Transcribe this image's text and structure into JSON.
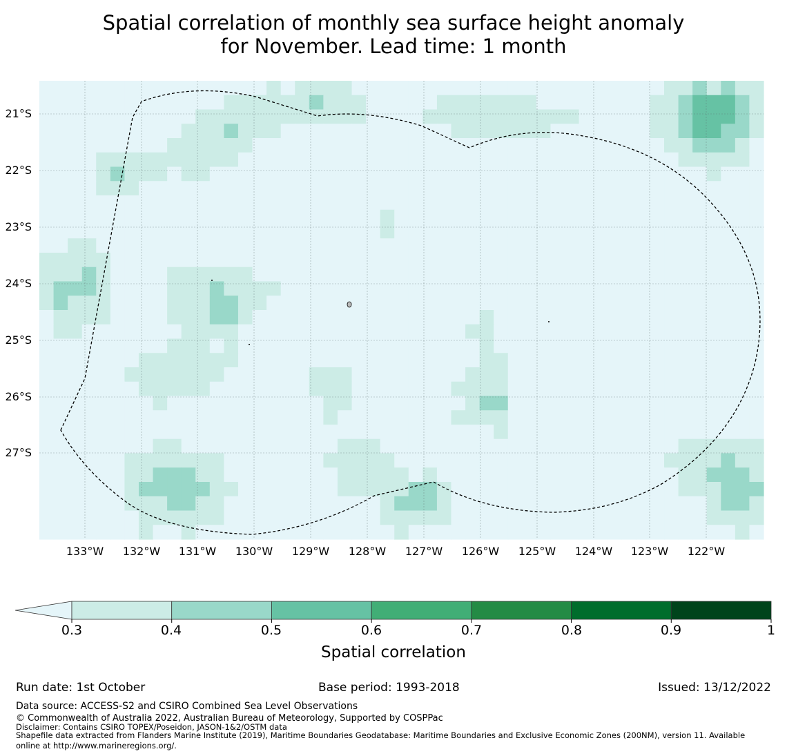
{
  "title": {
    "line1": "Spatial correlation of monthly sea surface height anomaly",
    "line2": "for November. Lead time: 1 month"
  },
  "map": {
    "lat_ticks": [
      "21°S",
      "22°S",
      "23°S",
      "24°S",
      "25°S",
      "26°S",
      "27°S"
    ],
    "lon_ticks": [
      "133°W",
      "132°W",
      "131°W",
      "130°W",
      "129°W",
      "128°W",
      "127°W",
      "126°W",
      "125°W",
      "124°W",
      "123°W",
      "122°W"
    ],
    "extent": {
      "lon_min": -133.8,
      "lon_max": -121.0,
      "lat_min": -28.5,
      "lat_max": -20.4
    },
    "colors": {
      "below": "#e5f5f9",
      "c3": "#ccece6",
      "c4": "#99d8c9",
      "c5": "#66c2a4",
      "c6": "#41ae76",
      "c7": "#238b45",
      "c8": "#006d2c",
      "c9": "#00441b",
      "grid": "#5a6a6a",
      "boundary": "#000000"
    }
  },
  "colorbar": {
    "label": "Spatial correlation",
    "ticks": [
      "0.3",
      "0.4",
      "0.5",
      "0.6",
      "0.7",
      "0.8",
      "0.9",
      "1"
    ],
    "bins": [
      "#ccece6",
      "#99d8c9",
      "#66c2a4",
      "#41ae76",
      "#238b45",
      "#006d2c",
      "#00441b"
    ],
    "under_color": "#e5f5f9"
  },
  "footer": {
    "run_date": "Run date: 1st October",
    "base_period": "Base period: 1993-2018",
    "issued": "Issued: 13/12/2022",
    "data_source": "Data source: ACCESS-S2 and CSIRO Combined Sea Level Observations",
    "copyright": "© Commonwealth of Australia 2022, Australian Bureau of Meteorology, Supported by COSPPac",
    "disclaimer": "Disclaimer: Contains CSIRO TOPEX/Poseidon, JASON-1&2/OSTM data",
    "shapefile1": "Shapefile data extracted from Flanders Marine Institute (2019), Maritime Boundaries Geodatabase: Maritime Boundaries and Exclusive Economic Zones (200NM), version 11. Available",
    "shapefile2": "online at http://www.marineregions.org/."
  }
}
